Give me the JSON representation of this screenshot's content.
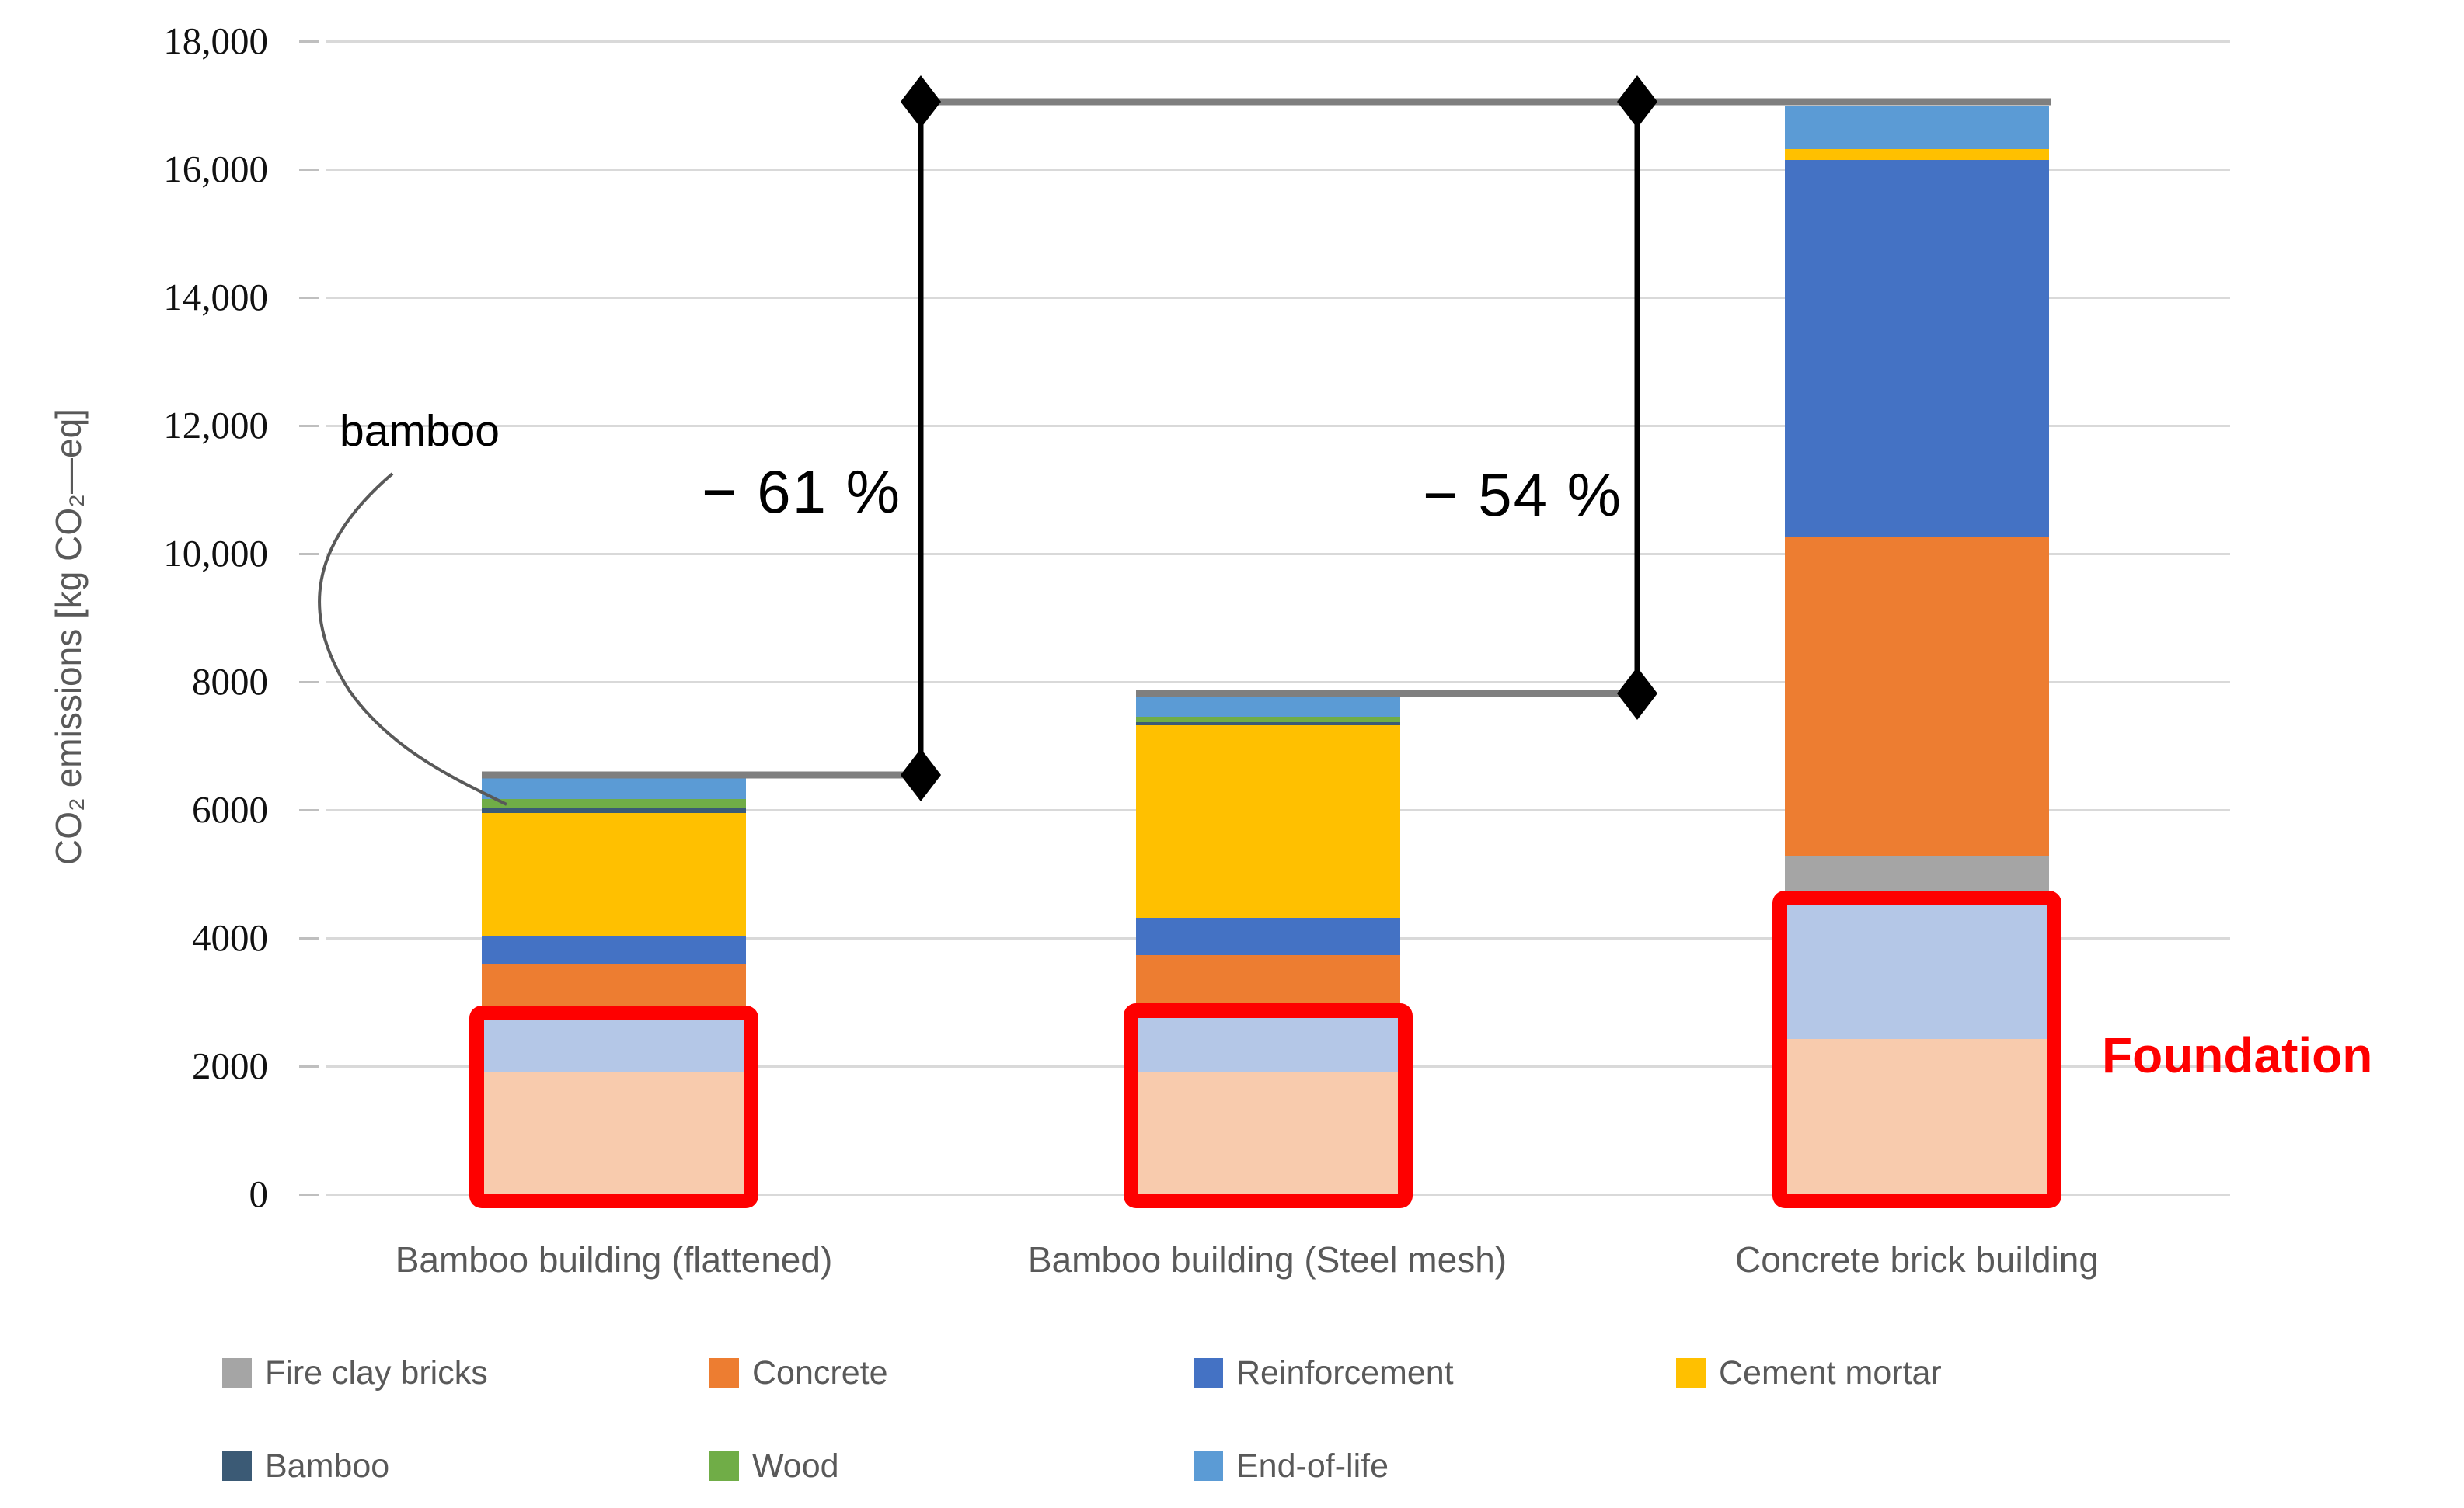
{
  "axis": {
    "title": "CO₂ emissions [kg CO₂—eq]",
    "ylim": [
      0,
      18000
    ],
    "grid": true,
    "ticks": [
      {
        "value": 18000,
        "label": "18,000"
      },
      {
        "value": 16000,
        "label": "16,000"
      },
      {
        "value": 14000,
        "label": "14,000"
      },
      {
        "value": 12000,
        "label": "12,000"
      },
      {
        "value": 10000,
        "label": "10,000"
      },
      {
        "value": 8000,
        "label": "8000"
      },
      {
        "value": 6000,
        "label": "6000"
      },
      {
        "value": 4000,
        "label": "4000"
      },
      {
        "value": 2000,
        "label": "2000"
      },
      {
        "value": 0,
        "label": "0"
      }
    ]
  },
  "chart_data": {
    "type": "bar",
    "stacked": true,
    "unit": "kg CO2-eq",
    "title": "",
    "xlabel": "",
    "ylabel": "CO₂ emissions [kg CO₂—eq]",
    "ylim": [
      0,
      18000
    ],
    "legend_position": "bottom",
    "categories": [
      "Bamboo building (flattened)",
      "Bamboo building (Steel mesh)",
      "Concrete brick building"
    ],
    "colors": {
      "Fire clay bricks": "#A5A5A5",
      "Concrete": "#ED7D31",
      "Reinforcement": "#4472C4",
      "Cement mortar": "#FFC000",
      "Bamboo": "#3B5A75",
      "Wood": "#70AD47",
      "End-of-life": "#5B9BD5",
      "Concrete (foundation)": "#F8CBAD",
      "Reinforcement (foundation)": "#B4C7E7"
    },
    "bars": [
      {
        "category": "Bamboo building (flattened)",
        "total": 6550,
        "segments": [
          {
            "material": "Concrete (foundation)",
            "value": 1900
          },
          {
            "material": "Reinforcement (foundation)",
            "value": 930
          },
          {
            "material": "Concrete",
            "value": 760
          },
          {
            "material": "Reinforcement",
            "value": 450
          },
          {
            "material": "Cement mortar",
            "value": 1910
          },
          {
            "material": "Bamboo",
            "value": 90
          },
          {
            "material": "Wood",
            "value": 130
          },
          {
            "material": "End-of-life",
            "value": 380
          }
        ]
      },
      {
        "category": "Bamboo building (Steel mesh)",
        "total": 7820,
        "segments": [
          {
            "material": "Concrete (foundation)",
            "value": 1900
          },
          {
            "material": "Reinforcement (foundation)",
            "value": 960
          },
          {
            "material": "Concrete",
            "value": 870
          },
          {
            "material": "Reinforcement",
            "value": 590
          },
          {
            "material": "Cement mortar",
            "value": 3000
          },
          {
            "material": "Bamboo",
            "value": 50
          },
          {
            "material": "Wood",
            "value": 90
          },
          {
            "material": "End-of-life",
            "value": 360
          }
        ]
      },
      {
        "category": "Concrete brick building",
        "total": 17000,
        "segments": [
          {
            "material": "Concrete (foundation)",
            "value": 2420
          },
          {
            "material": "Reinforcement (foundation)",
            "value": 2200
          },
          {
            "material": "Fire clay bricks",
            "value": 665
          },
          {
            "material": "Concrete",
            "value": 4965
          },
          {
            "material": "Reinforcement",
            "value": 5900
          },
          {
            "material": "Cement mortar",
            "value": 160
          },
          {
            "material": "End-of-life",
            "value": 690
          }
        ]
      }
    ],
    "foundation_boxes": [
      {
        "bar": 0,
        "from": 0,
        "to": 2830
      },
      {
        "bar": 1,
        "from": 0,
        "to": 2860
      },
      {
        "bar": 2,
        "from": 0,
        "to": 4620
      }
    ]
  },
  "annotations": {
    "reduction_bar1": "− 61 %",
    "reduction_bar2": "− 54 %",
    "bamboo_label": "bamboo",
    "foundation_label": "Foundation",
    "foundation_color": "#FE0000"
  },
  "legend": {
    "rows": [
      [
        {
          "label": "Fire clay bricks",
          "color": "#A5A5A5"
        },
        {
          "label": "Concrete",
          "color": "#ED7D31"
        },
        {
          "label": "Reinforcement",
          "color": "#4472C4"
        },
        {
          "label": "Cement mortar",
          "color": "#FFC000"
        }
      ],
      [
        {
          "label": "Bamboo",
          "color": "#3B5A75"
        },
        {
          "label": "Wood",
          "color": "#70AD47"
        },
        {
          "label": "End-of-life",
          "color": "#5B9BD5"
        }
      ]
    ]
  }
}
